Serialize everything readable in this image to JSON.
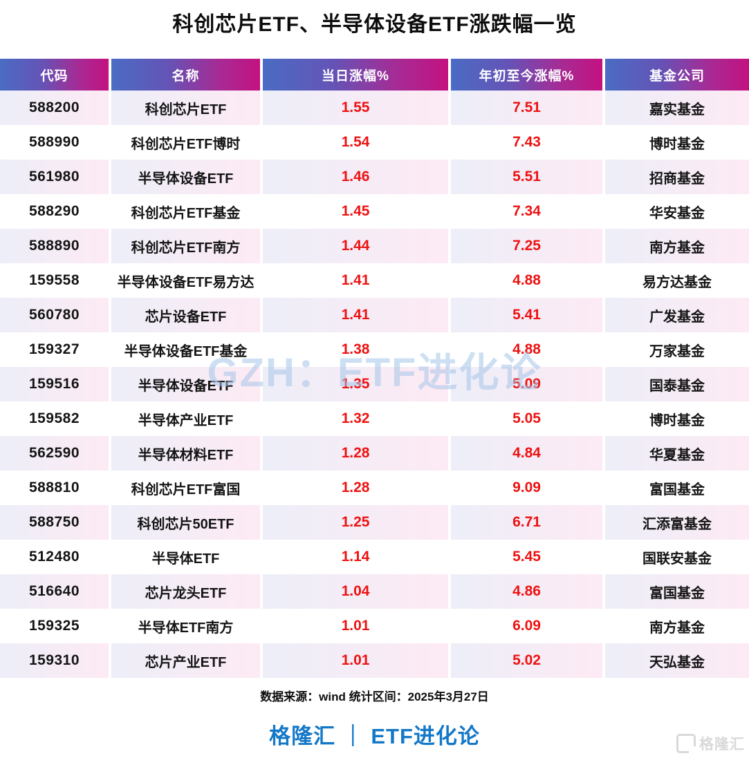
{
  "page": {
    "title": "科创芯片ETF、半导体设备ETF涨跌幅一览",
    "watermark": "GZH：ETF进化论"
  },
  "chart_data": {
    "type": "table",
    "title": "科创芯片ETF、半导体设备ETF涨跌幅一览",
    "columns": [
      "代码",
      "名称",
      "当日涨幅%",
      "年初至今涨幅%",
      "基金公司"
    ],
    "rows": [
      {
        "code": "588200",
        "name": "科创芯片ETF",
        "daily": "1.55",
        "ytd": "7.51",
        "company": "嘉实基金"
      },
      {
        "code": "588990",
        "name": "科创芯片ETF博时",
        "daily": "1.54",
        "ytd": "7.43",
        "company": "博时基金"
      },
      {
        "code": "561980",
        "name": "半导体设备ETF",
        "daily": "1.46",
        "ytd": "5.51",
        "company": "招商基金"
      },
      {
        "code": "588290",
        "name": "科创芯片ETF基金",
        "daily": "1.45",
        "ytd": "7.34",
        "company": "华安基金"
      },
      {
        "code": "588890",
        "name": "科创芯片ETF南方",
        "daily": "1.44",
        "ytd": "7.25",
        "company": "南方基金"
      },
      {
        "code": "159558",
        "name": "半导体设备ETF易方达",
        "daily": "1.41",
        "ytd": "4.88",
        "company": "易方达基金"
      },
      {
        "code": "560780",
        "name": "芯片设备ETF",
        "daily": "1.41",
        "ytd": "5.41",
        "company": "广发基金"
      },
      {
        "code": "159327",
        "name": "半导体设备ETF基金",
        "daily": "1.38",
        "ytd": "4.88",
        "company": "万家基金"
      },
      {
        "code": "159516",
        "name": "半导体设备ETF",
        "daily": "1.35",
        "ytd": "5.09",
        "company": "国泰基金"
      },
      {
        "code": "159582",
        "name": "半导体产业ETF",
        "daily": "1.32",
        "ytd": "5.05",
        "company": "博时基金"
      },
      {
        "code": "562590",
        "name": "半导体材料ETF",
        "daily": "1.28",
        "ytd": "4.84",
        "company": "华夏基金"
      },
      {
        "code": "588810",
        "name": "科创芯片ETF富国",
        "daily": "1.28",
        "ytd": "9.09",
        "company": "富国基金"
      },
      {
        "code": "588750",
        "name": "科创芯片50ETF",
        "daily": "1.25",
        "ytd": "6.71",
        "company": "汇添富基金"
      },
      {
        "code": "512480",
        "name": "半导体ETF",
        "daily": "1.14",
        "ytd": "5.45",
        "company": "国联安基金"
      },
      {
        "code": "516640",
        "name": "芯片龙头ETF",
        "daily": "1.04",
        "ytd": "4.86",
        "company": "富国基金"
      },
      {
        "code": "159325",
        "name": "半导体ETF南方",
        "daily": "1.01",
        "ytd": "6.09",
        "company": "南方基金"
      },
      {
        "code": "159310",
        "name": "芯片产业ETF",
        "daily": "1.01",
        "ytd": "5.02",
        "company": "天弘基金"
      }
    ]
  },
  "footer": {
    "source": "数据来源：wind 统计区间：2025年3月27日",
    "brand": "格隆汇 ｜ ETF进化论",
    "logo_text": "格隆汇"
  },
  "colors": {
    "header_gradient_start": "#4a6cc4",
    "header_gradient_end": "#c31280",
    "row_tint_start": "#edeef8",
    "row_tint_end": "#fdeaf4",
    "value_red": "#ee1111",
    "brand_blue": "#1478c8",
    "watermark_blue": "#a6c6e9",
    "logo_grey": "#d9d9d9"
  }
}
